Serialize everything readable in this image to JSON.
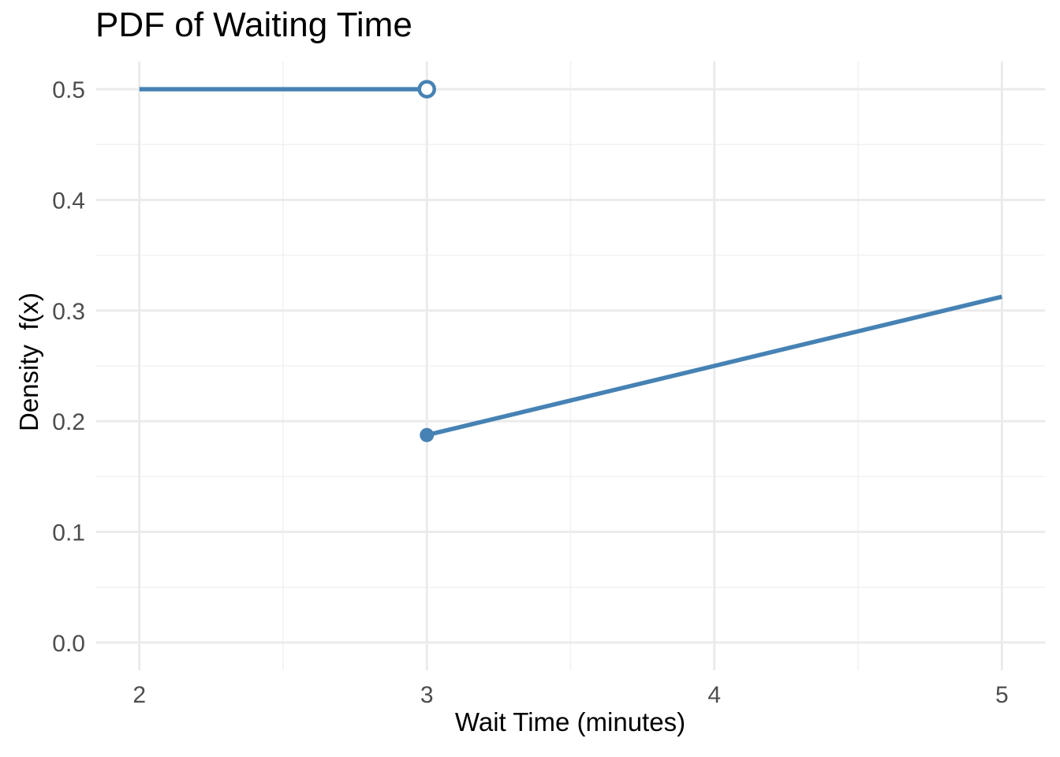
{
  "chart_data": {
    "type": "line",
    "title": "PDF of Waiting Time",
    "xlabel": "Wait Time (minutes)",
    "ylabel": "Density  f(x)",
    "xlim": [
      1.85,
      5.15
    ],
    "ylim": [
      -0.025,
      0.525
    ],
    "grid": true,
    "legend": "none",
    "x_ticks": [
      {
        "v": 2,
        "label": "2"
      },
      {
        "v": 3,
        "label": "3"
      },
      {
        "v": 4,
        "label": "4"
      },
      {
        "v": 5,
        "label": "5"
      }
    ],
    "y_ticks": [
      {
        "v": 0.0,
        "label": "0.0"
      },
      {
        "v": 0.1,
        "label": "0.1"
      },
      {
        "v": 0.2,
        "label": "0.2"
      },
      {
        "v": 0.3,
        "label": "0.3"
      },
      {
        "v": 0.4,
        "label": "0.4"
      },
      {
        "v": 0.5,
        "label": "0.5"
      }
    ],
    "x_minor": [
      2.5,
      3.5,
      4.5
    ],
    "y_minor": [
      0.05,
      0.15,
      0.25,
      0.35,
      0.45
    ],
    "series": [
      {
        "name": "pdf-flat-segment",
        "points": [
          [
            2,
            0.5
          ],
          [
            3,
            0.5
          ]
        ]
      },
      {
        "name": "pdf-rising-segment",
        "points": [
          [
            3,
            0.1875
          ],
          [
            5,
            0.3125
          ]
        ]
      }
    ],
    "markers": [
      {
        "x": 3,
        "y": 0.5,
        "style": "open",
        "name": "open-endpoint-marker"
      },
      {
        "x": 3,
        "y": 0.1875,
        "style": "filled",
        "name": "filled-endpoint-marker"
      }
    ],
    "colors": {
      "line": "#4682B4",
      "grid_major": "#ebebeb",
      "grid_minor": "#f2f2f2",
      "tick_label": "#4d4d4d",
      "title": "#000000",
      "axis_label": "#000000",
      "background": "#ffffff"
    }
  }
}
